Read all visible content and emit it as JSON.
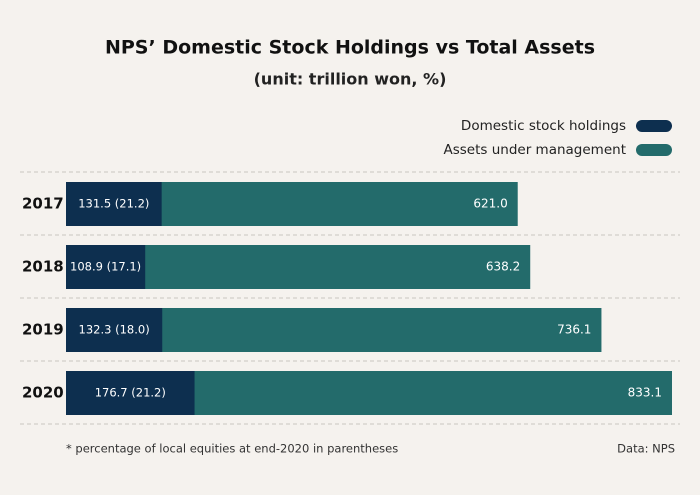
{
  "chart_data": {
    "type": "overlap-bar",
    "title": "NPS’ Domestic Stock Holdings vs Total Assets",
    "subtitle": "(unit: trillion won, %)",
    "categories": [
      "2017",
      "2018",
      "2019",
      "2020"
    ],
    "series": [
      {
        "name": "Assets under management",
        "color": "#236b6b",
        "values": [
          621.0,
          638.2,
          736.1,
          833.1
        ],
        "value_labels": [
          "621.0",
          "638.2",
          "736.1",
          "833.1"
        ]
      },
      {
        "name": "Domestic stock holdings",
        "color": "#0d2f4f",
        "values": [
          131.5,
          108.9,
          132.3,
          176.7
        ],
        "value_labels": [
          "131.5 (21.2)",
          "108.9 (17.1)",
          "132.3 (18.0)",
          "176.7 (21.2)"
        ]
      }
    ],
    "legend": "top-right",
    "footnote": "* percentage of local equities at end-2020 in parentheses",
    "source": "Data: NPS"
  }
}
